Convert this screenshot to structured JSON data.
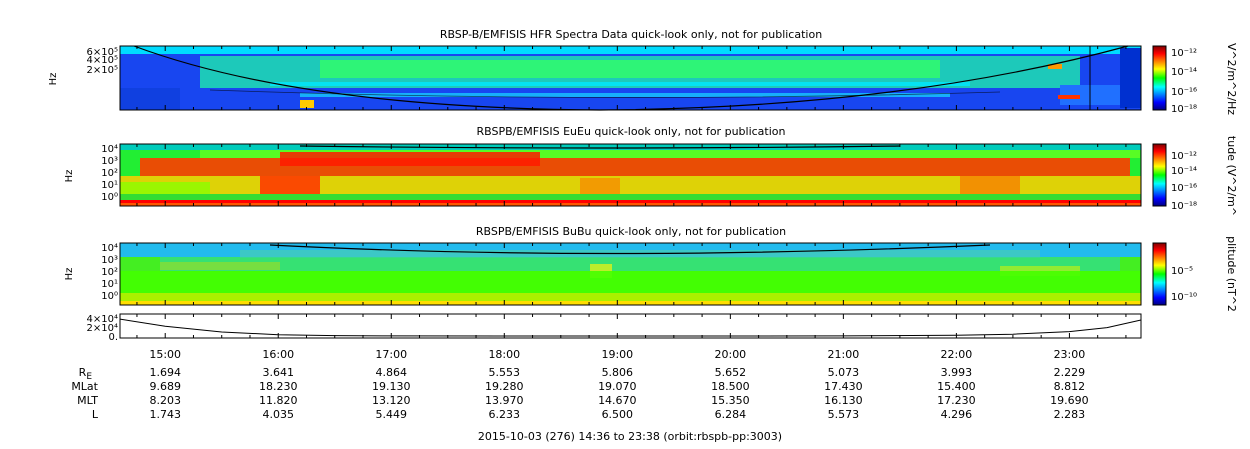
{
  "chart_data": [
    {
      "type": "heatmap",
      "title": "RBSP-B/EMFISIS  HFR Spectra Data quick-look only, not for publication",
      "ylabel": "Hz",
      "yticks": [
        "6×10⁵",
        "4×10⁵",
        "2×10⁵"
      ],
      "colorbar_label": "V^2/m^2/Hz",
      "colorbar_ticks": [
        "10⁻¹²",
        "10⁻¹⁴",
        "10⁻¹⁶",
        "10⁻¹⁸"
      ],
      "colorbar_range_log10": [
        -18.5,
        -11.5
      ]
    },
    {
      "type": "heatmap",
      "title": "RBSPB/EMFISIS  EuEu quick-look only, not for publication",
      "ylabel": "Hz",
      "yticks": [
        "10⁴",
        "10³",
        "10²",
        "10¹",
        "10⁰"
      ],
      "colorbar_label": "tude (V^2/m^",
      "colorbar_ticks": [
        "10⁻¹²",
        "10⁻¹⁴",
        "10⁻¹⁶",
        "10⁻¹⁸"
      ],
      "colorbar_range_log10": [
        -18.5,
        -11.5
      ]
    },
    {
      "type": "heatmap",
      "title": "RBSPB/EMFISIS  BuBu quick-look only, not for publication",
      "ylabel": "Hz",
      "yticks": [
        "10⁴",
        "10³",
        "10²",
        "10¹",
        "10⁰"
      ],
      "colorbar_label": "plitude (nT^2",
      "colorbar_ticks": [
        "10⁻⁵",
        "10⁻¹⁰"
      ],
      "colorbar_range_log10": [
        -12.5,
        -1.5
      ]
    },
    {
      "type": "line",
      "yticks": [
        "4×10⁴",
        "2×10⁴",
        "0."
      ],
      "x": [
        "14:36",
        "15:00",
        "15:30",
        "16:00",
        "16:30",
        "17:00",
        "18:00",
        "19:00",
        "20:00",
        "21:00",
        "22:00",
        "22:30",
        "23:00",
        "23:20",
        "23:38"
      ],
      "y": [
        38000,
        22000,
        9000,
        3000,
        900,
        300,
        80,
        50,
        60,
        150,
        1500,
        4000,
        10000,
        19000,
        36000
      ]
    }
  ],
  "time_axis": {
    "start_hour": 14.6,
    "end_hour": 23.6333,
    "ticks": [
      "15:00",
      "16:00",
      "17:00",
      "18:00",
      "19:00",
      "20:00",
      "21:00",
      "22:00",
      "23:00"
    ],
    "tick_hours": [
      15,
      16,
      17,
      18,
      19,
      20,
      21,
      22,
      23
    ]
  },
  "ephemeris": {
    "rows": [
      {
        "label": "R",
        "sub": "E",
        "values": [
          "1.694",
          "3.641",
          "4.864",
          "5.553",
          "5.806",
          "5.652",
          "5.073",
          "3.993",
          "2.229"
        ]
      },
      {
        "label": "MLat",
        "values": [
          "9.689",
          "18.230",
          "19.130",
          "19.280",
          "19.070",
          "18.500",
          "17.430",
          "15.400",
          "8.812"
        ]
      },
      {
        "label": "MLT",
        "values": [
          "8.203",
          "11.820",
          "13.120",
          "13.970",
          "14.670",
          "15.350",
          "16.130",
          "17.230",
          "19.690"
        ]
      },
      {
        "label": "L",
        "values": [
          "1.743",
          "4.035",
          "5.449",
          "6.233",
          "6.500",
          "6.284",
          "5.573",
          "4.296",
          "2.283"
        ]
      }
    ]
  },
  "footer": "2015-10-03 (276) 14:36 to 23:38 (orbit:rbspb-pp:3003)"
}
